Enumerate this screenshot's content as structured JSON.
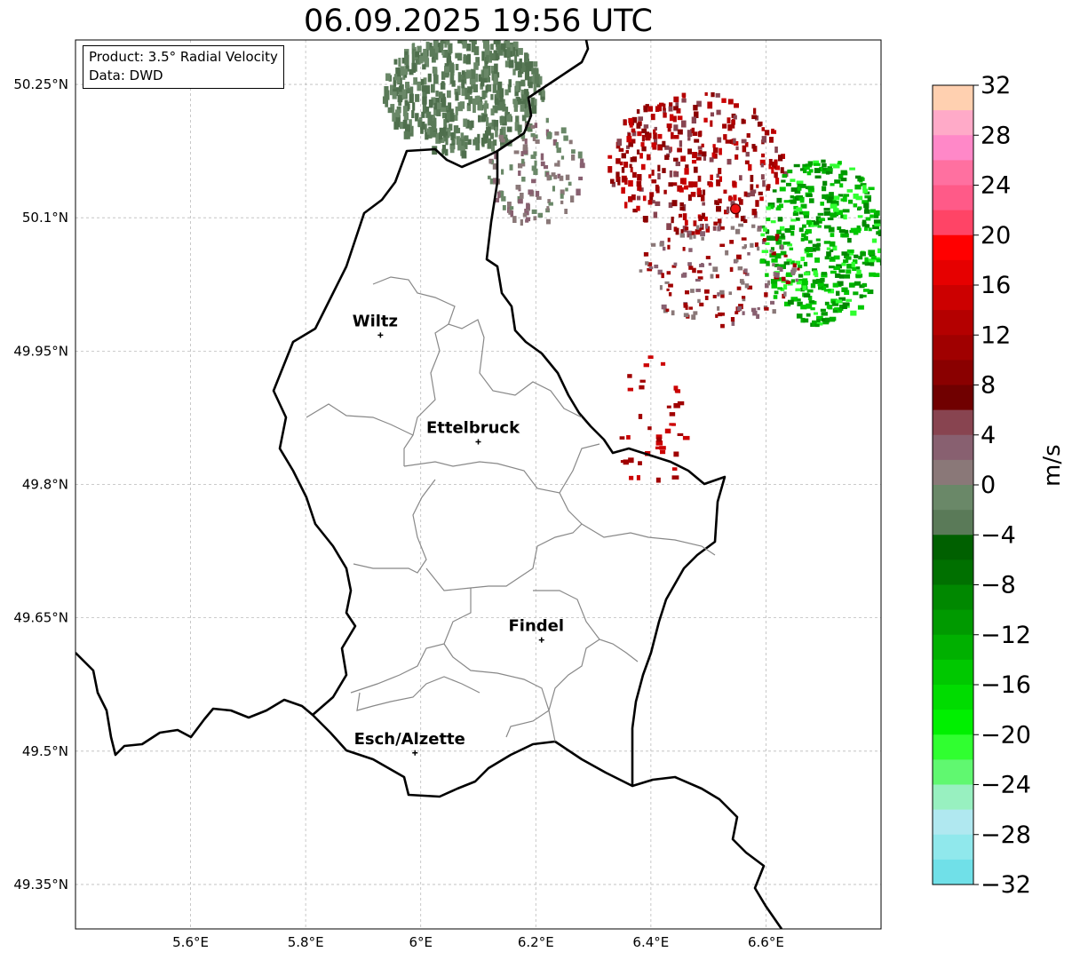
{
  "title": "06.09.2025 19:56 UTC",
  "info": {
    "product": "Product: 3.5° Radial Velocity",
    "source": "Data: DWD"
  },
  "map": {
    "lon_range": [
      5.4,
      6.8
    ],
    "lat_range": [
      49.3,
      50.3
    ],
    "x_ticks": [
      "5.6°E",
      "5.8°E",
      "6°E",
      "6.2°E",
      "6.4°E",
      "6.6°E"
    ],
    "y_ticks": [
      "50.25°N",
      "50.1°N",
      "49.95°N",
      "49.8°N",
      "49.65°N",
      "49.5°N",
      "49.35°N"
    ],
    "gridlines": true,
    "cities": [
      {
        "name": "Wiltz",
        "lon": 5.93,
        "lat": 49.968
      },
      {
        "name": "Ettelbruck",
        "lon": 6.1,
        "lat": 49.848
      },
      {
        "name": "Findel",
        "lon": 6.21,
        "lat": 49.625
      },
      {
        "name": "Esch/Alzette",
        "lon": 5.99,
        "lat": 49.498
      }
    ],
    "radar_site": {
      "lon": 6.547,
      "lat": 50.11,
      "color": "#ee1111"
    }
  },
  "colorbar": {
    "label": "m/s",
    "ticks": [
      "32",
      "28",
      "24",
      "20",
      "16",
      "12",
      "8",
      "4",
      "0",
      "−4",
      "−8",
      "−12",
      "−16",
      "−20",
      "−24",
      "−28",
      "−32"
    ],
    "colors_top_to_bottom": [
      "#ffd0b0",
      "#ffaac8",
      "#ff88c8",
      "#ff70a0",
      "#ff5a88",
      "#ff4466",
      "#ff0000",
      "#e60000",
      "#cc0000",
      "#b40000",
      "#a00000",
      "#8a0000",
      "#700000",
      "#884450",
      "#886070",
      "#8a7878",
      "#6a8868",
      "#5a7a58",
      "#006000",
      "#007000",
      "#008800",
      "#009a00",
      "#00b000",
      "#00c800",
      "#00dc00",
      "#00f000",
      "#30ff30",
      "#60f870",
      "#98f0c0",
      "#b0e8f0",
      "#90e8ec",
      "#70e0e8"
    ]
  }
}
